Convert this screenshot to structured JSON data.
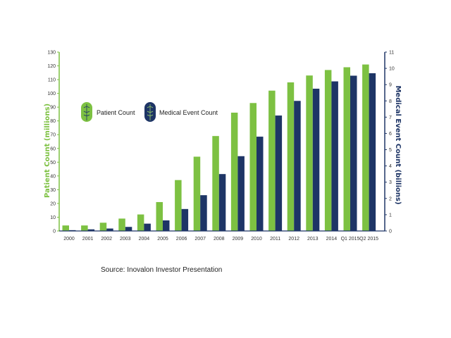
{
  "chart_data": {
    "type": "bar",
    "categories": [
      "2000",
      "2001",
      "2002",
      "2003",
      "2004",
      "2005",
      "2006",
      "2007",
      "2008",
      "2009",
      "2010",
      "2011",
      "2012",
      "2013",
      "2014",
      "Q1 2015",
      "Q2 2015"
    ],
    "series": [
      {
        "name": "Patient Count",
        "axis": "left",
        "color": "#7dc142",
        "values": [
          4,
          4,
          6,
          9,
          12,
          21,
          37,
          54,
          69,
          86,
          93,
          102,
          108,
          113,
          117,
          119,
          121
        ]
      },
      {
        "name": "Medical Event Count",
        "axis": "right",
        "color": "#1e3566",
        "values": [
          0.05,
          0.1,
          0.15,
          0.25,
          0.45,
          0.65,
          1.35,
          2.2,
          3.5,
          4.6,
          5.8,
          7.1,
          8.0,
          8.75,
          9.2,
          9.55,
          9.7
        ]
      }
    ],
    "ylabel": "Patient Count (millions)",
    "y2label": "Medical Event Count (billions)",
    "ylim": [
      0,
      130
    ],
    "y2lim": [
      0,
      11
    ],
    "yticks": [
      "0",
      "10",
      "20",
      "30",
      "40",
      "50",
      "60",
      "70",
      "80",
      "90",
      "100",
      "110",
      "120",
      "130"
    ],
    "y2ticks": [
      "0",
      "1",
      "2",
      "3",
      "4",
      "5",
      "6",
      "7",
      "8",
      "9",
      "10",
      "11"
    ],
    "grid": false,
    "legend_placement": "top-left"
  },
  "caption": "Source: Inovalon Investor Presentation"
}
